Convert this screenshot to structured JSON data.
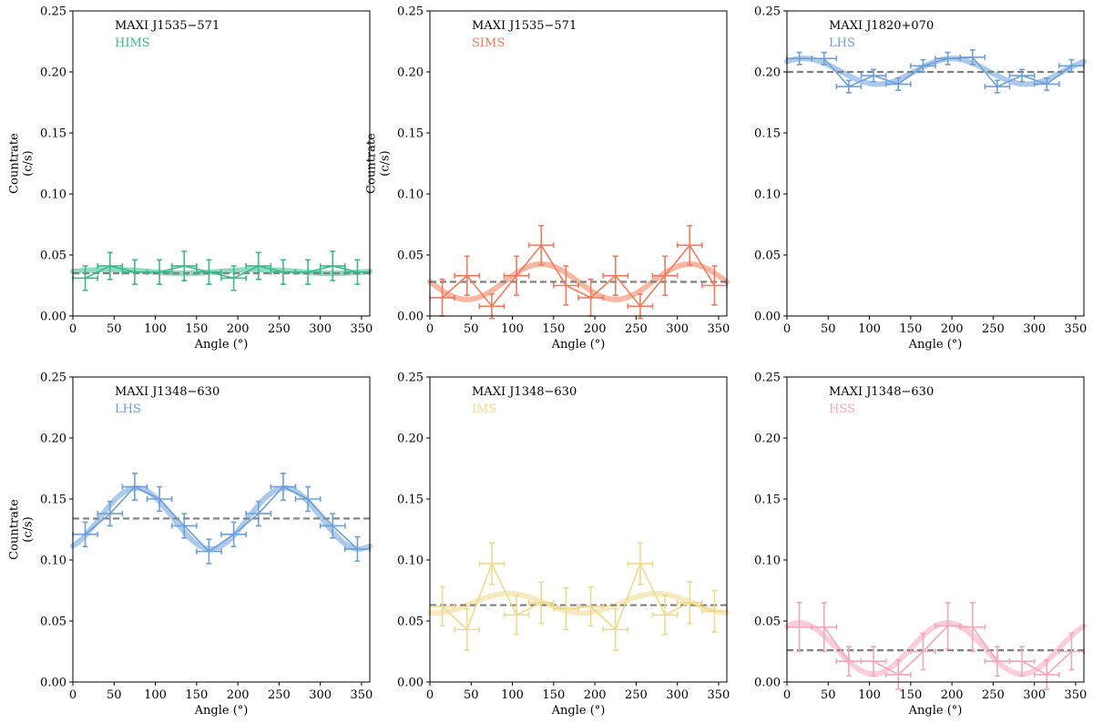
{
  "figure": {
    "ylabel_line1": "Countrate",
    "ylabel_line2": "(c/s)",
    "xlabel": "Angle (°)"
  },
  "chart_data": [
    {
      "type": "scatter",
      "source": "MAXI J1535−571",
      "state": "HIMS",
      "color": "#3cb88a",
      "xlim": [
        0,
        360
      ],
      "ylim": [
        0,
        0.25
      ],
      "xticks": [
        0,
        50,
        100,
        150,
        200,
        250,
        300,
        350
      ],
      "yticks": [
        "0.00",
        "0.05",
        "0.10",
        "0.15",
        "0.20",
        "0.25"
      ],
      "xlabel": "Angle (°)",
      "ylabel": "Countrate (c/s)",
      "mean": 0.035,
      "model": {
        "offset": 0.0365,
        "amplitude": 0.0015,
        "phase_deg": 45
      },
      "x": [
        15,
        45,
        75,
        105,
        135,
        165,
        195,
        225,
        255,
        285,
        315,
        345
      ],
      "y": [
        0.031,
        0.041,
        0.036,
        0.036,
        0.041,
        0.036,
        0.031,
        0.041,
        0.036,
        0.036,
        0.041,
        0.036
      ],
      "yerr": [
        0.01,
        0.011,
        0.01,
        0.01,
        0.012,
        0.01,
        0.01,
        0.011,
        0.01,
        0.01,
        0.012,
        0.01
      ],
      "xerr": 15
    },
    {
      "type": "scatter",
      "source": "MAXI J1535−571",
      "state": "SIMS",
      "color": "#ee7c5a",
      "xlim": [
        0,
        360
      ],
      "ylim": [
        0,
        0.25
      ],
      "xticks": [
        0,
        50,
        100,
        150,
        200,
        250,
        300,
        350
      ],
      "yticks": [
        "0.00",
        "0.05",
        "0.10",
        "0.15",
        "0.20",
        "0.25"
      ],
      "xlabel": "Angle (°)",
      "ylabel": "Countrate (c/s)",
      "mean": 0.028,
      "model": {
        "offset": 0.028,
        "amplitude": 0.0145,
        "phase_deg": 135
      },
      "x": [
        15,
        45,
        75,
        105,
        135,
        165,
        195,
        225,
        255,
        285,
        315,
        345
      ],
      "y": [
        0.015,
        0.033,
        0.008,
        0.033,
        0.058,
        0.025,
        0.015,
        0.033,
        0.008,
        0.033,
        0.058,
        0.025
      ],
      "yerr": [
        0.015,
        0.016,
        0.01,
        0.016,
        0.016,
        0.016,
        0.015,
        0.016,
        0.01,
        0.016,
        0.016,
        0.016
      ],
      "xerr": 15
    },
    {
      "type": "scatter",
      "source": "MAXI J1820+070",
      "state": "LHS",
      "color": "#6b9fd9",
      "xlim": [
        0,
        360
      ],
      "ylim": [
        0,
        0.25
      ],
      "xticks": [
        0,
        50,
        100,
        150,
        200,
        250,
        300,
        350
      ],
      "yticks": [
        "0.00",
        "0.05",
        "0.10",
        "0.15",
        "0.20",
        "0.25"
      ],
      "xlabel": "Angle (°)",
      "ylabel": "",
      "mean": 0.2,
      "model": {
        "offset": 0.2005,
        "amplitude": 0.0105,
        "phase_deg": 20
      },
      "x": [
        15,
        45,
        75,
        105,
        135,
        165,
        195,
        225,
        255,
        285,
        315,
        345
      ],
      "y": [
        0.211,
        0.211,
        0.188,
        0.197,
        0.19,
        0.205,
        0.211,
        0.212,
        0.188,
        0.197,
        0.19,
        0.205
      ],
      "yerr": [
        0.005,
        0.005,
        0.005,
        0.005,
        0.005,
        0.005,
        0.005,
        0.006,
        0.005,
        0.005,
        0.005,
        0.005
      ],
      "xerr": 15
    },
    {
      "type": "scatter",
      "source": "MAXI J1348−630",
      "state": "LHS",
      "color": "#6b9fd9",
      "xlim": [
        0,
        360
      ],
      "ylim": [
        0,
        0.25
      ],
      "xticks": [
        0,
        50,
        100,
        150,
        200,
        250,
        300,
        350
      ],
      "yticks": [
        "0.00",
        "0.05",
        "0.10",
        "0.15",
        "0.20",
        "0.25"
      ],
      "xlabel": "Angle (°)",
      "ylabel": "Countrate (c/s)",
      "mean": 0.134,
      "model": {
        "offset": 0.134,
        "amplitude": 0.025,
        "phase_deg": 77
      },
      "x": [
        15,
        45,
        75,
        105,
        135,
        165,
        195,
        225,
        255,
        285,
        315,
        345
      ],
      "y": [
        0.121,
        0.138,
        0.16,
        0.15,
        0.128,
        0.107,
        0.121,
        0.138,
        0.16,
        0.15,
        0.128,
        0.109
      ],
      "yerr": [
        0.01,
        0.01,
        0.011,
        0.01,
        0.01,
        0.01,
        0.01,
        0.01,
        0.011,
        0.01,
        0.01,
        0.01
      ],
      "xerr": 15
    },
    {
      "type": "scatter",
      "source": "MAXI J1348−630",
      "state": "IMS",
      "color": "#f0d98a",
      "xlim": [
        0,
        360
      ],
      "ylim": [
        0,
        0.25
      ],
      "xticks": [
        0,
        50,
        100,
        150,
        200,
        250,
        300,
        350
      ],
      "yticks": [
        "0.00",
        "0.05",
        "0.10",
        "0.15",
        "0.20",
        "0.25"
      ],
      "xlabel": "Angle (°)",
      "ylabel": "",
      "mean": 0.063,
      "model": {
        "offset": 0.0645,
        "amplitude": 0.008,
        "phase_deg": 95
      },
      "x": [
        15,
        45,
        75,
        105,
        135,
        165,
        195,
        225,
        255,
        285,
        315,
        345
      ],
      "y": [
        0.062,
        0.043,
        0.097,
        0.055,
        0.065,
        0.06,
        0.062,
        0.043,
        0.097,
        0.055,
        0.065,
        0.058
      ],
      "yerr": [
        0.016,
        0.017,
        0.017,
        0.016,
        0.017,
        0.017,
        0.016,
        0.017,
        0.017,
        0.016,
        0.017,
        0.017
      ],
      "xerr": 15
    },
    {
      "type": "scatter",
      "source": "MAXI J1348−630",
      "state": "HSS",
      "color": "#f4a6ba",
      "xlim": [
        0,
        360
      ],
      "ylim": [
        0,
        0.25
      ],
      "xticks": [
        0,
        50,
        100,
        150,
        200,
        250,
        300,
        350
      ],
      "yticks": [
        "0.00",
        "0.05",
        "0.10",
        "0.15",
        "0.20",
        "0.25"
      ],
      "xlabel": "Angle (°)",
      "ylabel": "",
      "mean": 0.026,
      "model": {
        "offset": 0.0275,
        "amplitude": 0.021,
        "phase_deg": 15
      },
      "x": [
        15,
        45,
        75,
        105,
        135,
        165,
        195,
        225,
        255,
        285,
        315,
        345
      ],
      "y": [
        0.045,
        0.045,
        0.017,
        0.017,
        0.006,
        0.025,
        0.046,
        0.045,
        0.017,
        0.017,
        0.006,
        0.025
      ],
      "yerr": [
        0.02,
        0.02,
        0.012,
        0.012,
        0.012,
        0.015,
        0.019,
        0.02,
        0.012,
        0.012,
        0.012,
        0.015
      ],
      "xerr": 15
    }
  ]
}
